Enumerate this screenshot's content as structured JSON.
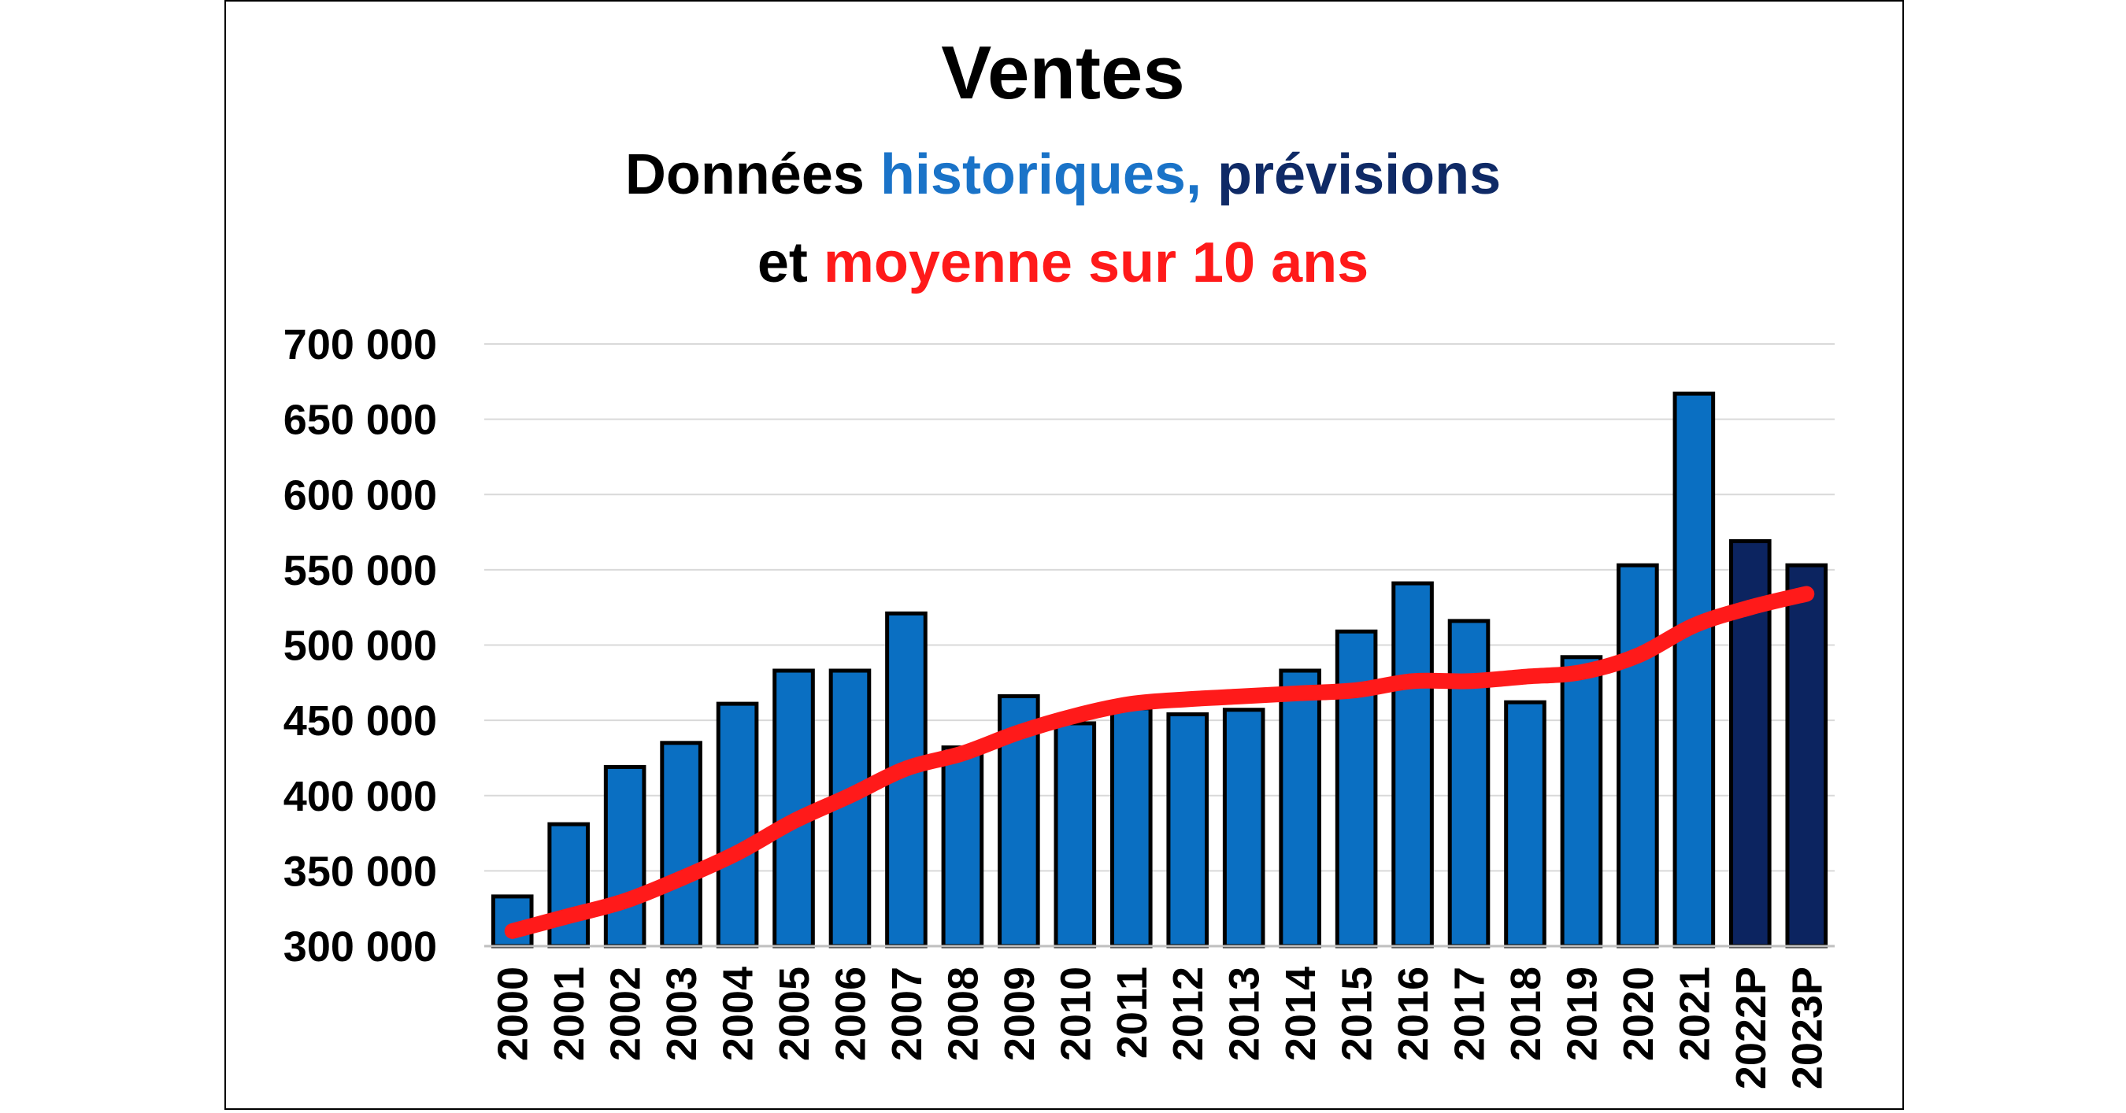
{
  "chart_data": {
    "type": "bar",
    "title": "Ventes",
    "subtitle": {
      "line1": [
        {
          "text": "Données ",
          "color": "#000000"
        },
        {
          "text": "historiques,",
          "color": "#1a73c8"
        },
        {
          "text": " prévisions",
          "color": "#0f2a66"
        }
      ],
      "line2": [
        {
          "text": "et ",
          "color": "#000000"
        },
        {
          "text": "moyenne sur 10 ans",
          "color": "#ff1a1a"
        }
      ]
    },
    "categories": [
      "2000",
      "2001",
      "2002",
      "2003",
      "2004",
      "2005",
      "2006",
      "2007",
      "2008",
      "2009",
      "2010",
      "2011",
      "2012",
      "2013",
      "2014",
      "2015",
      "2016",
      "2017",
      "2018",
      "2019",
      "2020",
      "2021",
      "2022P",
      "2023P"
    ],
    "series": [
      {
        "type": "bar",
        "values": [
          333000,
          381000,
          419000,
          435000,
          461000,
          483000,
          483000,
          521000,
          432000,
          466000,
          448000,
          458000,
          454000,
          457000,
          483000,
          509000,
          541000,
          516000,
          462000,
          492000,
          553000,
          667000,
          569000,
          553000
        ],
        "colors": {
          "historical": "#0a6fc2",
          "forecast": "#0c2460",
          "outline": "#000000"
        },
        "forecast_categories": [
          "2022P",
          "2023P"
        ]
      },
      {
        "type": "line",
        "values": [
          310000,
          320000,
          330000,
          345000,
          362000,
          383000,
          400000,
          418000,
          428000,
          442000,
          453000,
          461000,
          464000,
          466000,
          468000,
          470000,
          476000,
          476000,
          479000,
          482000,
          493000,
          513000,
          525000,
          534000
        ],
        "color": "#ff1a1a"
      }
    ],
    "ylim": [
      300000,
      700000
    ],
    "yticks": [
      {
        "value": 300000,
        "label": "300 000"
      },
      {
        "value": 350000,
        "label": "350 000"
      },
      {
        "value": 400000,
        "label": "400 000"
      },
      {
        "value": 450000,
        "label": "450 000"
      },
      {
        "value": 500000,
        "label": "500 000"
      },
      {
        "value": 550000,
        "label": "550 000"
      },
      {
        "value": 600000,
        "label": "600 000"
      },
      {
        "value": 650000,
        "label": "650 000"
      },
      {
        "value": 700000,
        "label": "700 000"
      }
    ],
    "grid": true,
    "legend": "none",
    "xlabel": "",
    "ylabel": ""
  }
}
